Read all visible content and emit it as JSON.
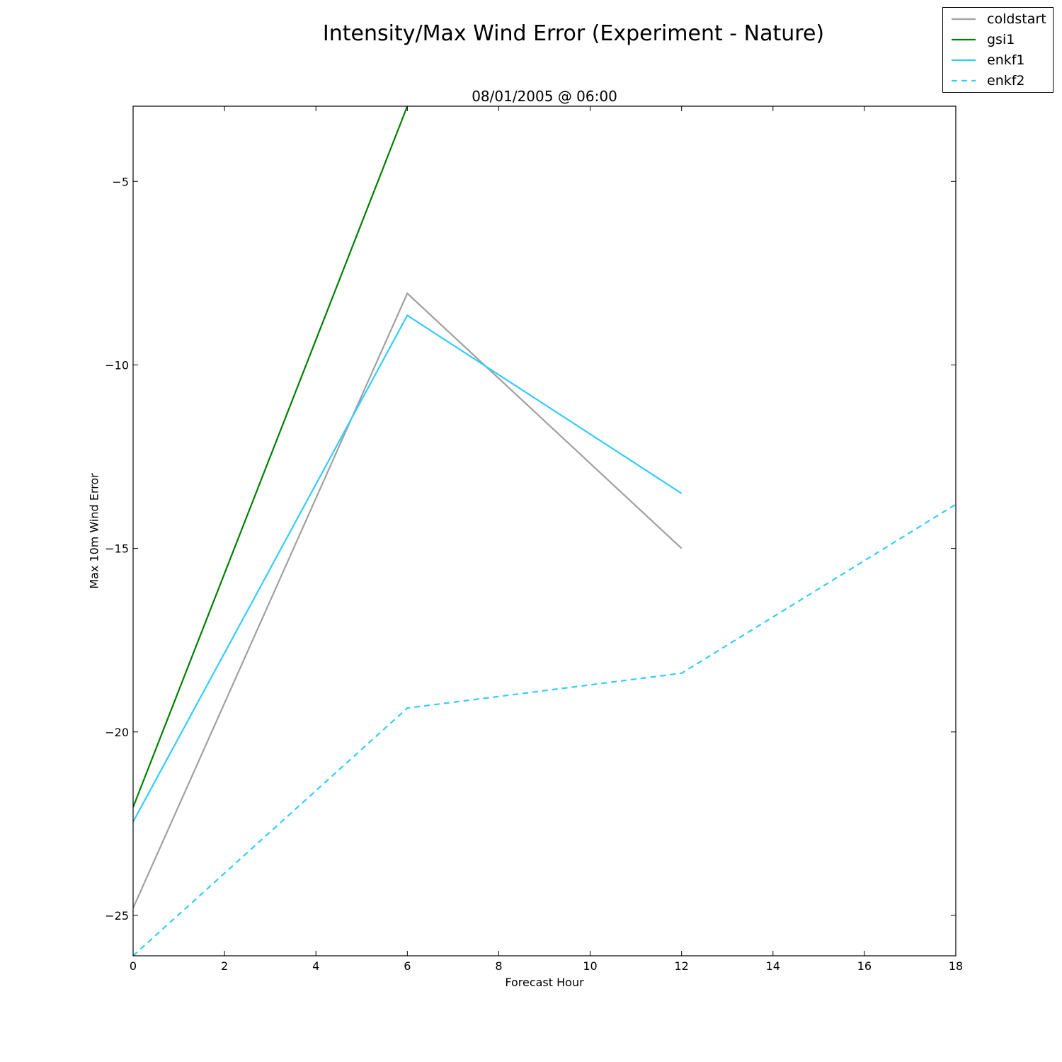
{
  "chart_data": {
    "type": "line",
    "suptitle": "Intensity/Max Wind Error (Experiment - Nature)",
    "title": "08/01/2005 @ 06:00",
    "xlabel": "Forecast Hour",
    "ylabel": "Max 10m Wind Error",
    "xlim": [
      0,
      18
    ],
    "ylim": [
      -26.1,
      -2.95
    ],
    "xticks": [
      0,
      2,
      4,
      6,
      8,
      10,
      12,
      14,
      16,
      18
    ],
    "xtick_labels": [
      "0",
      "2",
      "4",
      "6",
      "8",
      "10",
      "12",
      "14",
      "16",
      "18"
    ],
    "yticks": [
      -25,
      -20,
      -15,
      -10,
      -5
    ],
    "ytick_labels": [
      "−25",
      "−20",
      "−15",
      "−10",
      "−5"
    ],
    "grid": false,
    "legend_position": "top-right (outside axes)",
    "series": [
      {
        "name": "coldstart",
        "color": "#a0a0a0",
        "dash": "solid",
        "x": [
          0,
          6,
          12
        ],
        "y": [
          -24.8,
          -8.05,
          -15.0
        ]
      },
      {
        "name": "gsi1",
        "color": "#008000",
        "dash": "solid",
        "x": [
          0,
          6
        ],
        "y": [
          -22.05,
          -2.95
        ]
      },
      {
        "name": "enkf1",
        "color": "#33ccff",
        "dash": "solid",
        "x": [
          0,
          6,
          12
        ],
        "y": [
          -22.45,
          -8.65,
          -13.5
        ]
      },
      {
        "name": "enkf2",
        "color": "#33ccff",
        "dash": "dashed",
        "x": [
          0,
          6,
          12,
          18
        ],
        "y": [
          -26.1,
          -19.35,
          -18.4,
          -13.8
        ]
      }
    ]
  }
}
